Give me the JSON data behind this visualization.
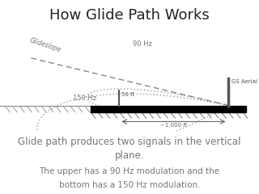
{
  "title": "How Glide Path Works",
  "title_fontsize": 13,
  "background_color": "#ffffff",
  "label_90hz": "90 Hz",
  "label_150hz": "150 Hz",
  "label_glideslope": "Glideslope",
  "label_gs_aerial": "GS Aerial",
  "label_50ft": "50 ft",
  "label_1000ft": "~1,000 ft",
  "text_color": "#888888",
  "diagram_color": "#888888"
}
